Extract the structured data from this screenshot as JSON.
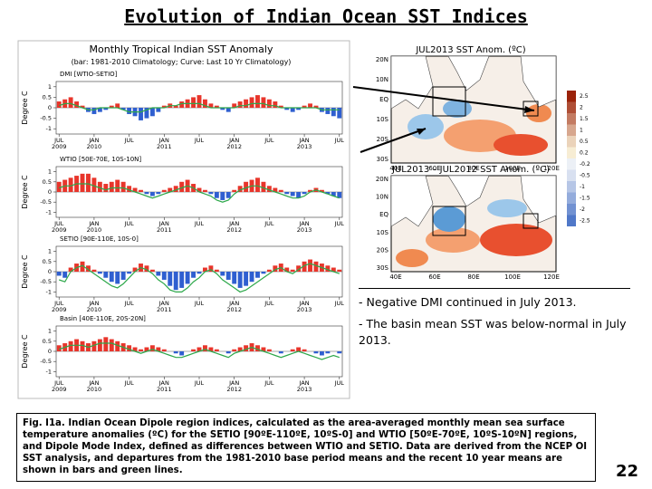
{
  "title": "Evolution of Indian Ocean SST Indices",
  "panel": {
    "title": "Monthly Tropical Indian SST Anomaly",
    "subtitle": "(bar: 1981-2010 Climatology; Curve: Last 10 Yr Climatology)"
  },
  "chart_data": [
    {
      "type": "bar",
      "title": "DMI [WTIO-SETIO]",
      "ylabel": "Degree C",
      "ylim": [
        -1.25,
        1.25
      ],
      "yticks": [
        1,
        0.5,
        0,
        -0.5,
        -1
      ],
      "pos_color": "#e8352b",
      "neg_color": "#2f5fd0",
      "categories": [
        "JUL 2009",
        null,
        null,
        null,
        null,
        null,
        "JAN 2010",
        null,
        null,
        null,
        null,
        null,
        "JUL",
        null,
        null,
        null,
        null,
        null,
        "JAN 2011",
        null,
        null,
        null,
        null,
        null,
        "JUL",
        null,
        null,
        null,
        null,
        null,
        "JAN 2012",
        null,
        null,
        null,
        null,
        null,
        "JUL",
        null,
        null,
        null,
        null,
        null,
        "JAN 2013",
        null,
        null,
        null,
        null,
        null,
        "JUL"
      ],
      "values": [
        0.3,
        0.4,
        0.5,
        0.3,
        0.1,
        -0.2,
        -0.3,
        -0.2,
        -0.1,
        0.1,
        0.2,
        -0.1,
        -0.3,
        -0.4,
        -0.6,
        -0.5,
        -0.4,
        -0.2,
        0.1,
        0.2,
        0.1,
        0.3,
        0.4,
        0.5,
        0.6,
        0.4,
        0.2,
        0.1,
        -0.1,
        -0.2,
        0.2,
        0.3,
        0.4,
        0.5,
        0.6,
        0.5,
        0.4,
        0.3,
        0.1,
        -0.1,
        -0.2,
        -0.1,
        0.1,
        0.2,
        0.1,
        -0.2,
        -0.3,
        -0.4,
        -0.5
      ],
      "line": {
        "color": "#2da84a",
        "values": [
          0.1,
          0.2,
          0.2,
          0.1,
          0,
          -0.1,
          -0.1,
          0,
          0,
          0,
          0,
          -0.1,
          -0.2,
          -0.2,
          -0.2,
          -0.1,
          0,
          0,
          0,
          0.1,
          0.1,
          0.2,
          0.2,
          0.2,
          0.2,
          0.1,
          0,
          0,
          0,
          0,
          0,
          0.1,
          0.1,
          0.2,
          0.2,
          0.2,
          0.1,
          0.1,
          0,
          0,
          0,
          0,
          0,
          0,
          0,
          -0.1,
          -0.1,
          -0.1,
          -0.1
        ]
      }
    },
    {
      "type": "bar",
      "title": "WTIO [50E-70E, 10S-10N]",
      "ylabel": "Degree C",
      "ylim": [
        -1.25,
        1.25
      ],
      "yticks": [
        1,
        0.5,
        0,
        -0.5,
        -1
      ],
      "pos_color": "#e8352b",
      "neg_color": "#2f5fd0",
      "categories": [
        "JUL 2009",
        null,
        null,
        null,
        null,
        null,
        "JAN 2010",
        null,
        null,
        null,
        null,
        null,
        "JUL",
        null,
        null,
        null,
        null,
        null,
        "JAN 2011",
        null,
        null,
        null,
        null,
        null,
        "JUL",
        null,
        null,
        null,
        null,
        null,
        "JAN 2012",
        null,
        null,
        null,
        null,
        null,
        "JUL",
        null,
        null,
        null,
        null,
        null,
        "JAN 2013",
        null,
        null,
        null,
        null,
        null,
        "JUL"
      ],
      "values": [
        0.5,
        0.6,
        0.7,
        0.8,
        0.9,
        0.9,
        0.7,
        0.5,
        0.4,
        0.5,
        0.6,
        0.5,
        0.3,
        0.2,
        0.1,
        -0.1,
        -0.2,
        -0.1,
        0.1,
        0.2,
        0.3,
        0.5,
        0.6,
        0.4,
        0.2,
        0.1,
        -0.1,
        -0.3,
        -0.4,
        -0.3,
        0.1,
        0.3,
        0.5,
        0.6,
        0.7,
        0.5,
        0.3,
        0.2,
        0.1,
        -0.1,
        -0.2,
        -0.3,
        -0.1,
        0.1,
        0.2,
        0.1,
        -0.1,
        -0.2,
        -0.3
      ],
      "line": {
        "color": "#2da84a",
        "values": [
          0.2,
          0.3,
          0.3,
          0.4,
          0.4,
          0.4,
          0.3,
          0.2,
          0.1,
          0.2,
          0.2,
          0.2,
          0.1,
          0,
          -0.1,
          -0.2,
          -0.3,
          -0.2,
          -0.1,
          0,
          0.1,
          0.2,
          0.3,
          0.2,
          0,
          -0.1,
          -0.2,
          -0.4,
          -0.5,
          -0.4,
          -0.1,
          0.1,
          0.2,
          0.3,
          0.3,
          0.2,
          0.1,
          0,
          -0.1,
          -0.2,
          -0.3,
          -0.3,
          -0.2,
          0,
          0.1,
          0,
          -0.1,
          -0.2,
          -0.3
        ]
      }
    },
    {
      "type": "bar",
      "title": "SETIO [90E-110E, 10S-0]",
      "ylabel": "Degree C",
      "ylim": [
        -1.25,
        1.25
      ],
      "yticks": [
        1,
        0.5,
        0,
        -0.5,
        -1
      ],
      "pos_color": "#e8352b",
      "neg_color": "#2f5fd0",
      "categories": [
        "JUL 2009",
        null,
        null,
        null,
        null,
        null,
        "JAN 2010",
        null,
        null,
        null,
        null,
        null,
        "JUL",
        null,
        null,
        null,
        null,
        null,
        "JAN 2011",
        null,
        null,
        null,
        null,
        null,
        "JUL",
        null,
        null,
        null,
        null,
        null,
        "JAN 2012",
        null,
        null,
        null,
        null,
        null,
        "JUL",
        null,
        null,
        null,
        null,
        null,
        "JAN 2013",
        null,
        null,
        null,
        null,
        null,
        "JUL"
      ],
      "values": [
        -0.2,
        -0.3,
        0.2,
        0.4,
        0.5,
        0.3,
        0.1,
        -0.1,
        -0.3,
        -0.5,
        -0.6,
        -0.4,
        -0.1,
        0.2,
        0.4,
        0.3,
        0.1,
        -0.2,
        -0.4,
        -0.7,
        -0.9,
        -0.8,
        -0.6,
        -0.3,
        -0.1,
        0.2,
        0.3,
        0.1,
        -0.2,
        -0.4,
        -0.6,
        -0.8,
        -0.7,
        -0.5,
        -0.3,
        -0.1,
        0.1,
        0.3,
        0.4,
        0.2,
        0.1,
        0.3,
        0.5,
        0.6,
        0.5,
        0.4,
        0.3,
        0.2,
        0.1
      ],
      "line": {
        "color": "#2da84a",
        "values": [
          -0.4,
          -0.5,
          0,
          0.2,
          0.3,
          0.1,
          -0.1,
          -0.3,
          -0.5,
          -0.7,
          -0.8,
          -0.6,
          -0.3,
          0,
          0.2,
          0.1,
          -0.1,
          -0.4,
          -0.6,
          -0.9,
          -1,
          -1,
          -0.8,
          -0.5,
          -0.3,
          0,
          0.1,
          -0.1,
          -0.4,
          -0.6,
          -0.8,
          -1,
          -0.9,
          -0.7,
          -0.5,
          -0.3,
          -0.1,
          0.1,
          0.2,
          0,
          -0.1,
          0.1,
          0.3,
          0.4,
          0.3,
          0.2,
          0.1,
          0,
          -0.1
        ]
      }
    },
    {
      "type": "bar",
      "title": "Basin [40E-110E, 20S-20N]",
      "ylabel": "Degree C",
      "ylim": [
        -1.25,
        1.25
      ],
      "yticks": [
        1,
        0.5,
        0,
        -0.5,
        -1
      ],
      "pos_color": "#e8352b",
      "neg_color": "#2f5fd0",
      "categories": [
        "JUL 2009",
        null,
        null,
        null,
        null,
        null,
        "JAN 2010",
        null,
        null,
        null,
        null,
        null,
        "JUL",
        null,
        null,
        null,
        null,
        null,
        "JAN 2011",
        null,
        null,
        null,
        null,
        null,
        "JUL",
        null,
        null,
        null,
        null,
        null,
        "JAN 2012",
        null,
        null,
        null,
        null,
        null,
        "JUL",
        null,
        null,
        null,
        null,
        null,
        "JAN 2013",
        null,
        null,
        null,
        null,
        null,
        "JUL"
      ],
      "values": [
        0.3,
        0.4,
        0.5,
        0.6,
        0.5,
        0.4,
        0.5,
        0.6,
        0.7,
        0.6,
        0.5,
        0.4,
        0.3,
        0.2,
        0.1,
        0.2,
        0.3,
        0.2,
        0.1,
        0,
        -0.1,
        -0.2,
        0,
        0.1,
        0.2,
        0.3,
        0.2,
        0.1,
        0,
        -0.1,
        0.1,
        0.2,
        0.3,
        0.4,
        0.3,
        0.2,
        0.1,
        0,
        -0.1,
        0,
        0.1,
        0.2,
        0.1,
        0,
        -0.1,
        -0.2,
        -0.1,
        0,
        -0.1
      ],
      "line": {
        "color": "#2da84a",
        "values": [
          0.1,
          0.2,
          0.3,
          0.3,
          0.3,
          0.2,
          0.3,
          0.4,
          0.4,
          0.4,
          0.3,
          0.2,
          0.1,
          0,
          -0.1,
          0,
          0.1,
          0,
          -0.1,
          -0.2,
          -0.3,
          -0.3,
          -0.2,
          -0.1,
          0,
          0.1,
          0,
          -0.1,
          -0.2,
          -0.3,
          -0.1,
          0,
          0.1,
          0.2,
          0.1,
          0,
          -0.1,
          -0.2,
          -0.3,
          -0.2,
          -0.1,
          0,
          -0.1,
          -0.2,
          -0.3,
          -0.4,
          -0.3,
          -0.2,
          -0.3
        ]
      }
    }
  ],
  "maps": [
    {
      "title": "JUL2013 SST Anom. (ºC)",
      "lat_labels": [
        "20N",
        "10N",
        "EQ",
        "10S",
        "20S",
        "30S"
      ],
      "lon_labels": [
        "40E",
        "60E",
        "80E",
        "100E",
        "120E"
      ]
    },
    {
      "title": "JUL2013 – JUL2012 SST Anom. (ºC)",
      "lat_labels": [
        "20N",
        "10N",
        "EQ",
        "10S",
        "20S",
        "30S"
      ],
      "lon_labels": [
        "40E",
        "60E",
        "80E",
        "100E",
        "120E"
      ]
    }
  ],
  "colorbar": [
    2.5,
    2,
    1.5,
    1,
    0.5,
    0.2,
    -0.2,
    -0.5,
    -1,
    -1.5,
    -2,
    -2.5
  ],
  "notes": [
    "- Negative DMI continued in July 2013.",
    "- The basin mean SST was below-normal in July 2013."
  ],
  "caption": "Fig. I1a. Indian Ocean Dipole region indices, calculated as the area-averaged monthly mean sea surface temperature anomalies (ºC) for the SETIO [90ºE-110ºE, 10ºS-0] and WTIO [50ºE-70ºE, 10ºS-10ºN] regions, and Dipole Mode Index, defined as differences between WTIO and SETIO. Data are derived from the NCEP OI SST analysis, and departures from the 1981-2010 base period means and the recent 10 year means are shown in bars and green lines.",
  "page_number": "22"
}
